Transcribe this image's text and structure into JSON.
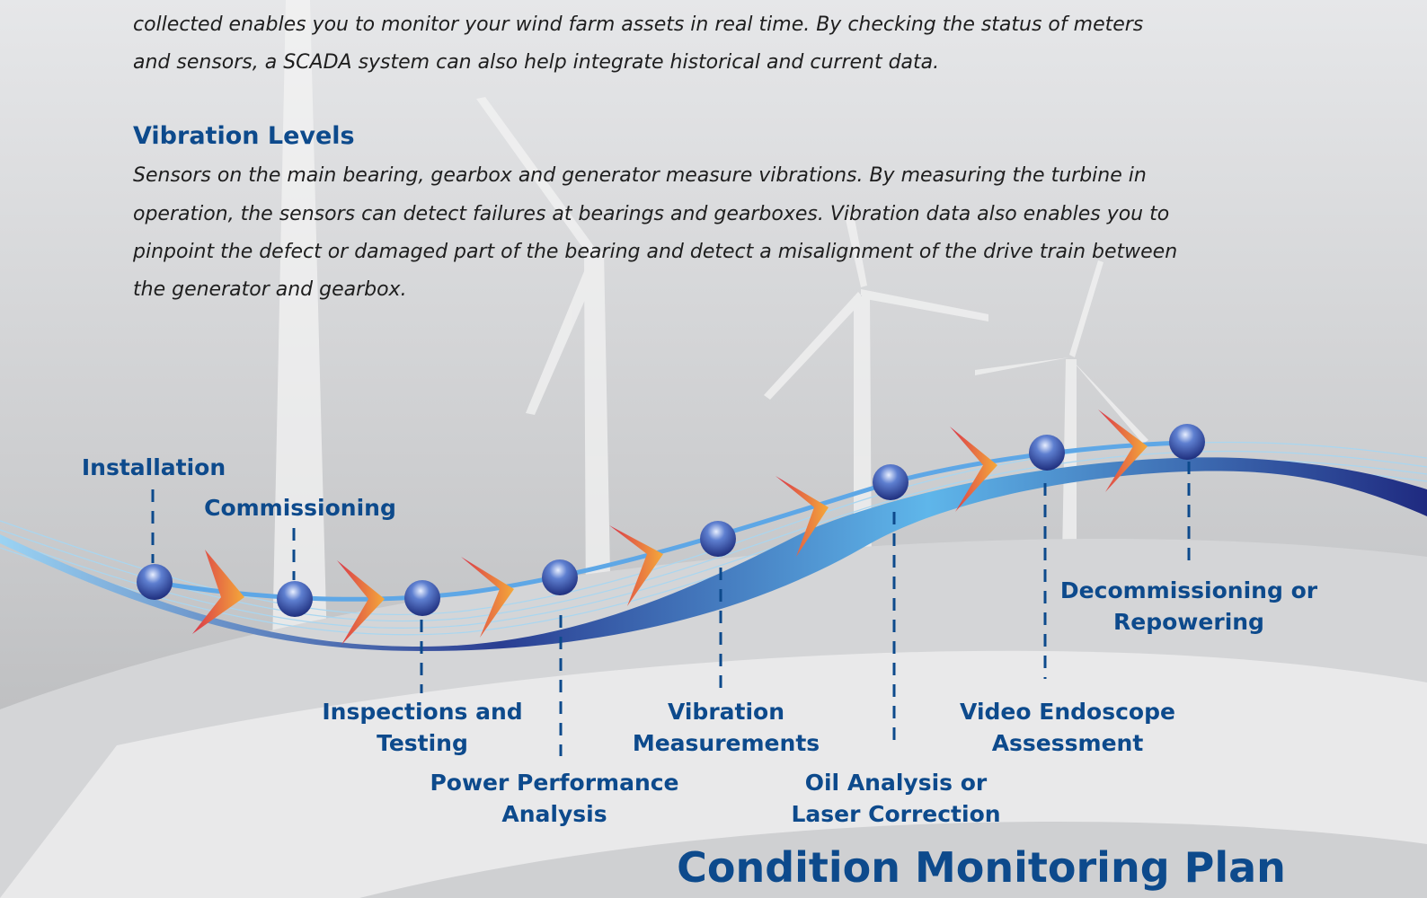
{
  "body": {
    "intro_lines": [
      "collected enables you to monitor your wind farm assets in real time. By checking the status of meters",
      "and sensors, a SCADA system can also help integrate historical and current data."
    ],
    "heading": "Vibration Levels",
    "paragraph_lines": [
      "Sensors on the main bearing, gearbox and generator measure vibrations. By measuring the turbine in",
      "operation, the sensors can detect failures at bearings and gearboxes. Vibration data also enables you to",
      "pinpoint the defect or damaged part of the bearing and detect a misalignment of the drive train between",
      "the generator and gearbox."
    ]
  },
  "diagram": {
    "stages": [
      {
        "lines": [
          "Installation"
        ]
      },
      {
        "lines": [
          "Commissioning"
        ]
      },
      {
        "lines": [
          "Inspections and",
          "Testing"
        ]
      },
      {
        "lines": [
          "Power Performance",
          "Analysis"
        ]
      },
      {
        "lines": [
          "Vibration",
          "Measurements"
        ]
      },
      {
        "lines": [
          "Oil Analysis or",
          "Laser Correction"
        ]
      },
      {
        "lines": [
          "Video Endoscope",
          "Assessment"
        ]
      },
      {
        "lines": [
          "Decommissioning or",
          "Repowering"
        ]
      }
    ],
    "title": "Condition Monitoring Plan"
  }
}
